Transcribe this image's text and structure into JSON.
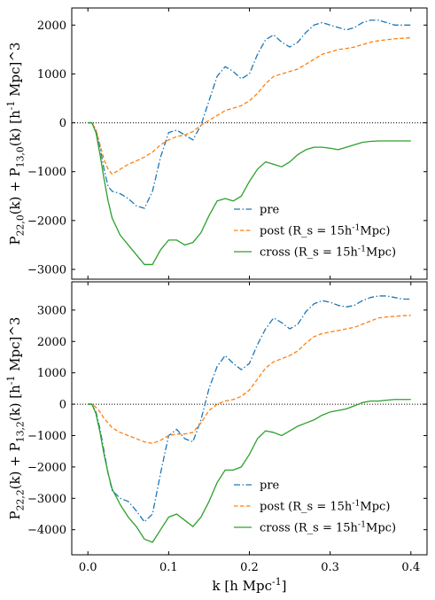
{
  "chart_data": [
    {
      "type": "line",
      "ylabel": "P_{22,0}(k) + P_{13,0}(k) [h^{-1} Mpc]^3",
      "xlim": [
        -0.02,
        0.42
      ],
      "ylim": [
        -3200,
        2350
      ],
      "xticks": [
        0.0,
        0.1,
        0.2,
        0.3,
        0.4
      ],
      "yticks": [
        -3000,
        -2000,
        -1000,
        0,
        1000,
        2000
      ],
      "ytick_labels": [
        "−3000",
        "−2000",
        "−1000",
        "0",
        "1000",
        "2000"
      ],
      "zero_line": true,
      "legend_position": "lower-right",
      "legend": [
        "pre",
        "post (R_s = 15h^{-1}Mpc)",
        "cross (R_s = 15h^{-1}Mpc)"
      ],
      "series": [
        {
          "name": "pre",
          "color": "#1f77b4",
          "style": "dashdot",
          "x": [
            0.0,
            0.005,
            0.01,
            0.015,
            0.02,
            0.025,
            0.03,
            0.04,
            0.05,
            0.06,
            0.07,
            0.08,
            0.09,
            0.1,
            0.11,
            0.12,
            0.13,
            0.14,
            0.15,
            0.16,
            0.17,
            0.18,
            0.19,
            0.2,
            0.21,
            0.22,
            0.23,
            0.24,
            0.25,
            0.26,
            0.27,
            0.28,
            0.29,
            0.3,
            0.31,
            0.32,
            0.33,
            0.34,
            0.35,
            0.36,
            0.37,
            0.38,
            0.39,
            0.4
          ],
          "y": [
            0,
            0,
            -150,
            -500,
            -950,
            -1300,
            -1400,
            -1450,
            -1550,
            -1700,
            -1750,
            -1400,
            -700,
            -200,
            -150,
            -250,
            -350,
            -50,
            450,
            950,
            1150,
            1050,
            900,
            1000,
            1400,
            1700,
            1800,
            1650,
            1550,
            1650,
            1850,
            2000,
            2050,
            2000,
            1950,
            1900,
            1950,
            2050,
            2100,
            2100,
            2050,
            2000,
            2000,
            2000
          ]
        },
        {
          "name": "post (R_s = 15h^{-1}Mpc)",
          "color": "#ff7f0e",
          "style": "dashed",
          "x": [
            0.0,
            0.005,
            0.01,
            0.015,
            0.02,
            0.025,
            0.03,
            0.04,
            0.05,
            0.06,
            0.07,
            0.08,
            0.09,
            0.1,
            0.11,
            0.12,
            0.13,
            0.14,
            0.15,
            0.16,
            0.17,
            0.18,
            0.19,
            0.2,
            0.21,
            0.22,
            0.23,
            0.24,
            0.25,
            0.26,
            0.27,
            0.28,
            0.29,
            0.3,
            0.31,
            0.32,
            0.33,
            0.34,
            0.35,
            0.36,
            0.37,
            0.38,
            0.39,
            0.4
          ],
          "y": [
            0,
            0,
            -150,
            -450,
            -750,
            -950,
            -1050,
            -950,
            -850,
            -780,
            -700,
            -600,
            -450,
            -350,
            -280,
            -250,
            -180,
            -50,
            50,
            150,
            250,
            300,
            350,
            450,
            600,
            800,
            950,
            1000,
            1050,
            1100,
            1200,
            1300,
            1400,
            1450,
            1500,
            1520,
            1550,
            1600,
            1650,
            1680,
            1700,
            1720,
            1730,
            1740
          ]
        },
        {
          "name": "cross (R_s = 15h^{-1}Mpc)",
          "color": "#2ca02c",
          "style": "solid",
          "x": [
            0.0,
            0.005,
            0.01,
            0.015,
            0.02,
            0.025,
            0.03,
            0.04,
            0.05,
            0.06,
            0.07,
            0.08,
            0.09,
            0.1,
            0.11,
            0.12,
            0.13,
            0.14,
            0.15,
            0.16,
            0.17,
            0.18,
            0.19,
            0.2,
            0.21,
            0.22,
            0.23,
            0.24,
            0.25,
            0.26,
            0.27,
            0.28,
            0.29,
            0.3,
            0.31,
            0.32,
            0.33,
            0.34,
            0.35,
            0.36,
            0.37,
            0.38,
            0.39,
            0.4
          ],
          "y": [
            0,
            0,
            -200,
            -650,
            -1150,
            -1600,
            -1950,
            -2300,
            -2500,
            -2700,
            -2900,
            -2900,
            -2600,
            -2400,
            -2400,
            -2500,
            -2450,
            -2250,
            -1900,
            -1600,
            -1550,
            -1600,
            -1500,
            -1200,
            -950,
            -800,
            -850,
            -900,
            -800,
            -650,
            -550,
            -500,
            -500,
            -520,
            -550,
            -500,
            -450,
            -400,
            -380,
            -370,
            -370,
            -370,
            -370,
            -370
          ]
        }
      ]
    },
    {
      "type": "line",
      "xlabel": "k [h Mpc^{-1}]",
      "ylabel": "P_{22,2}(k) + P_{13,2}(k) [h^{-1} Mpc]^3",
      "xlim": [
        -0.02,
        0.42
      ],
      "ylim": [
        -4800,
        3900
      ],
      "xticks": [
        0.0,
        0.1,
        0.2,
        0.3,
        0.4
      ],
      "xtick_labels": [
        "0.0",
        "0.1",
        "0.2",
        "0.3",
        "0.4"
      ],
      "yticks": [
        -4000,
        -3000,
        -2000,
        -1000,
        0,
        1000,
        2000,
        3000
      ],
      "ytick_labels": [
        "−4000",
        "−3000",
        "−2000",
        "−1000",
        "0",
        "1000",
        "2000",
        "3000"
      ],
      "zero_line": true,
      "legend_position": "lower-right",
      "legend": [
        "pre",
        "post (R_s = 15h^{-1}Mpc)",
        "cross (R_s = 15h^{-1}Mpc)"
      ],
      "series": [
        {
          "name": "pre",
          "color": "#1f77b4",
          "style": "dashdot",
          "x": [
            0.0,
            0.005,
            0.01,
            0.015,
            0.02,
            0.025,
            0.03,
            0.04,
            0.05,
            0.06,
            0.07,
            0.08,
            0.09,
            0.1,
            0.11,
            0.12,
            0.13,
            0.14,
            0.15,
            0.16,
            0.17,
            0.18,
            0.19,
            0.2,
            0.21,
            0.22,
            0.23,
            0.24,
            0.25,
            0.26,
            0.27,
            0.28,
            0.29,
            0.3,
            0.31,
            0.32,
            0.33,
            0.34,
            0.35,
            0.36,
            0.37,
            0.38,
            0.39,
            0.4
          ],
          "y": [
            0,
            0,
            -250,
            -800,
            -1500,
            -2200,
            -2750,
            -3000,
            -3100,
            -3400,
            -3750,
            -3500,
            -2200,
            -1000,
            -800,
            -1100,
            -1200,
            -500,
            500,
            1200,
            1550,
            1300,
            1100,
            1300,
            1900,
            2400,
            2750,
            2600,
            2400,
            2550,
            2950,
            3200,
            3300,
            3250,
            3150,
            3100,
            3150,
            3300,
            3400,
            3450,
            3450,
            3400,
            3350,
            3350
          ]
        },
        {
          "name": "post (R_s = 15h^{-1}Mpc)",
          "color": "#ff7f0e",
          "style": "dashed",
          "x": [
            0.0,
            0.005,
            0.01,
            0.015,
            0.02,
            0.025,
            0.03,
            0.04,
            0.05,
            0.06,
            0.07,
            0.08,
            0.09,
            0.1,
            0.11,
            0.12,
            0.13,
            0.14,
            0.15,
            0.16,
            0.17,
            0.18,
            0.19,
            0.2,
            0.21,
            0.22,
            0.23,
            0.24,
            0.25,
            0.26,
            0.27,
            0.28,
            0.29,
            0.3,
            0.31,
            0.32,
            0.33,
            0.34,
            0.35,
            0.36,
            0.37,
            0.38,
            0.39,
            0.4
          ],
          "y": [
            0,
            0,
            -100,
            -250,
            -450,
            -600,
            -750,
            -900,
            -1000,
            -1100,
            -1200,
            -1250,
            -1150,
            -1000,
            -950,
            -950,
            -900,
            -600,
            -200,
            0,
            100,
            150,
            250,
            450,
            800,
            1150,
            1350,
            1450,
            1550,
            1700,
            1950,
            2150,
            2250,
            2300,
            2350,
            2400,
            2450,
            2550,
            2650,
            2750,
            2780,
            2800,
            2820,
            2830
          ]
        },
        {
          "name": "cross (R_s = 15h^{-1}Mpc)",
          "color": "#2ca02c",
          "style": "solid",
          "x": [
            0.0,
            0.005,
            0.01,
            0.015,
            0.02,
            0.025,
            0.03,
            0.04,
            0.05,
            0.06,
            0.07,
            0.08,
            0.09,
            0.1,
            0.11,
            0.12,
            0.13,
            0.14,
            0.15,
            0.16,
            0.17,
            0.18,
            0.19,
            0.2,
            0.21,
            0.22,
            0.23,
            0.24,
            0.25,
            0.26,
            0.27,
            0.28,
            0.29,
            0.3,
            0.31,
            0.32,
            0.33,
            0.34,
            0.35,
            0.36,
            0.37,
            0.38,
            0.39,
            0.4
          ],
          "y": [
            0,
            0,
            -300,
            -900,
            -1600,
            -2200,
            -2700,
            -3200,
            -3600,
            -3900,
            -4300,
            -4400,
            -4000,
            -3600,
            -3500,
            -3700,
            -3900,
            -3600,
            -3100,
            -2500,
            -2100,
            -2100,
            -2000,
            -1600,
            -1100,
            -850,
            -900,
            -1000,
            -850,
            -700,
            -600,
            -500,
            -350,
            -250,
            -200,
            -150,
            -50,
            50,
            100,
            100,
            130,
            150,
            150,
            150
          ]
        }
      ]
    }
  ]
}
